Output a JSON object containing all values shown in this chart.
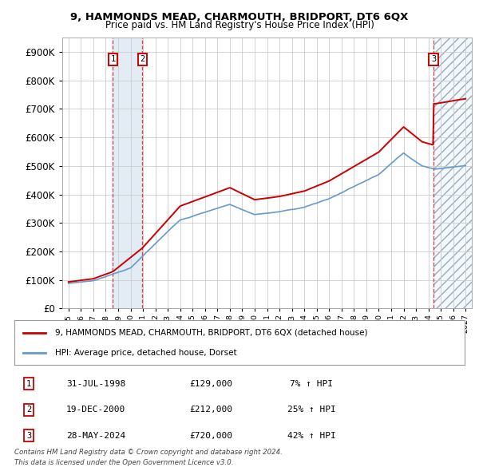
{
  "title": "9, HAMMONDS MEAD, CHARMOUTH, BRIDPORT, DT6 6QX",
  "subtitle": "Price paid vs. HM Land Registry's House Price Index (HPI)",
  "red_label": "9, HAMMONDS MEAD, CHARMOUTH, BRIDPORT, DT6 6QX (detached house)",
  "blue_label": "HPI: Average price, detached house, Dorset",
  "transactions": [
    {
      "num": 1,
      "date": "31-JUL-1998",
      "price": 129000,
      "pct": "7%",
      "year": 1998.58
    },
    {
      "num": 2,
      "date": "19-DEC-2000",
      "price": 212000,
      "pct": "25%",
      "year": 2000.96
    },
    {
      "num": 3,
      "date": "28-MAY-2024",
      "price": 720000,
      "pct": "42%",
      "year": 2024.41
    }
  ],
  "footer1": "Contains HM Land Registry data © Crown copyright and database right 2024.",
  "footer2": "This data is licensed under the Open Government Licence v3.0.",
  "ylim": [
    0,
    950000
  ],
  "yticks": [
    0,
    100000,
    200000,
    300000,
    400000,
    500000,
    600000,
    700000,
    800000,
    900000
  ],
  "xmin": 1994.5,
  "xmax": 2027.5,
  "bg_color": "#ffffff",
  "grid_color": "#cccccc",
  "red_color": "#cc0000",
  "blue_color": "#6699cc",
  "shade_blue_alpha": 0.18,
  "future_hatch_color": "#bbccdd"
}
